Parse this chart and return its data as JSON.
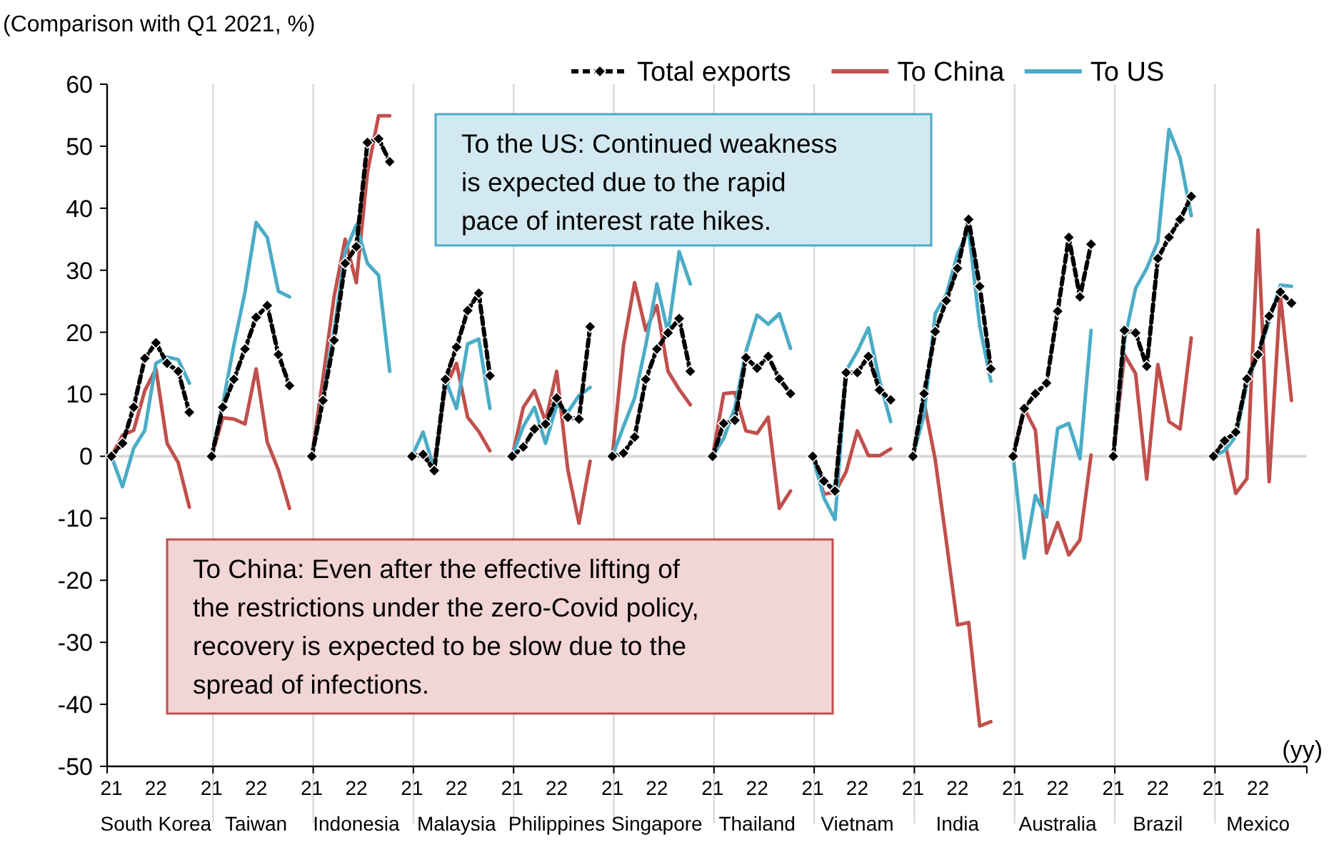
{
  "chart_data": {
    "type": "line",
    "ylabel": "(Comparison with Q1 2021, %)",
    "xlabel": "(yy)",
    "categories": [
      "21",
      null,
      null,
      null,
      "22",
      null,
      null,
      null,
      null,
      "21",
      null,
      null,
      null,
      "22",
      null,
      null,
      null,
      null,
      "21",
      null,
      null,
      null,
      "22",
      null,
      null,
      null,
      null,
      "21",
      null,
      null,
      null,
      "22",
      null,
      null,
      null,
      null,
      "21",
      null,
      null,
      null,
      "22",
      null,
      null,
      null,
      null,
      "21",
      null,
      null,
      null,
      "22",
      null,
      null,
      null,
      null,
      "21",
      null,
      null,
      null,
      "22",
      null,
      null,
      null,
      null,
      "21",
      null,
      null,
      null,
      "22",
      null,
      null,
      null,
      null,
      "21",
      null,
      null,
      null,
      "22",
      null,
      null,
      null,
      null,
      "21",
      null,
      null,
      null,
      "22",
      null,
      null,
      null,
      null,
      "21",
      null,
      null,
      null,
      "22",
      null,
      null,
      null,
      null,
      "21",
      null,
      null,
      null,
      "22",
      null,
      null,
      null,
      null
    ],
    "series": [
      {
        "name": "Total exports",
        "color": "#000000",
        "marker": "diamond",
        "line_style": "dashed",
        "values": [
          0,
          2.1,
          7.9,
          15.8,
          18.3,
          15.0,
          13.7,
          7.1,
          null,
          0,
          7.9,
          12.4,
          17.3,
          22.4,
          24.3,
          16.4,
          11.4,
          null,
          0,
          9.0,
          18.7,
          31.1,
          33.8,
          50.6,
          51.2,
          47.5,
          null,
          0,
          0.3,
          -2.3,
          12.4,
          17.6,
          23.5,
          26.3,
          13.0,
          null,
          0,
          1.5,
          4.4,
          5.2,
          9.4,
          6.3,
          6.0,
          20.9,
          null,
          0,
          0.5,
          3.1,
          12.4,
          17.3,
          19.9,
          22.2,
          13.7,
          null,
          0,
          5.3,
          5.8,
          15.9,
          14.2,
          16.1,
          12.5,
          10.1,
          null,
          0,
          -4.0,
          -5.6,
          13.5,
          13.5,
          16.1,
          10.7,
          9.1,
          null,
          0,
          10.1,
          20.1,
          25.1,
          30.3,
          38.2,
          27.4,
          14.1,
          null,
          0,
          7.7,
          10.1,
          11.8,
          23.4,
          35.3,
          25.7,
          34.2,
          null,
          0,
          20.3,
          19.9,
          14.5,
          31.9,
          35.3,
          38.2,
          41.9,
          null,
          0,
          2.5,
          3.9,
          12.5,
          16.4,
          22.6,
          26.5,
          24.7,
          null
        ]
      },
      {
        "name": "To China",
        "color": "#c0504d",
        "values": [
          0,
          3.4,
          4.2,
          10.6,
          14.1,
          2.1,
          -1.0,
          -8.2,
          null,
          0,
          6.2,
          6.0,
          5.2,
          14.1,
          2.3,
          -2.2,
          -8.4,
          null,
          0,
          12.5,
          25.7,
          35.0,
          28.0,
          45.8,
          54.9,
          54.9,
          null,
          0,
          0.5,
          -1.0,
          11.0,
          15.0,
          6.3,
          4.0,
          0.9,
          null,
          0,
          7.9,
          10.6,
          5.6,
          13.7,
          -2.2,
          -10.8,
          -0.8,
          null,
          0,
          17.9,
          28.0,
          20.3,
          24.3,
          13.7,
          10.8,
          8.3,
          null,
          0,
          10.1,
          10.3,
          4.1,
          3.7,
          6.3,
          -8.4,
          -5.6,
          null,
          0,
          -6.1,
          -5.8,
          -2.5,
          4.1,
          0.1,
          0.1,
          1.2,
          null,
          0,
          8.7,
          -0.5,
          -13.7,
          -27.2,
          -26.8,
          -43.5,
          -42.8,
          null,
          0,
          7.7,
          4.2,
          -15.6,
          -10.7,
          -15.9,
          -13.5,
          0.2,
          null,
          0,
          16.4,
          13.3,
          -3.7,
          14.8,
          5.6,
          4.4,
          19.1,
          null,
          0,
          2.5,
          -6.0,
          -3.6,
          36.5,
          -4.1,
          26.1,
          9.0,
          null
        ]
      },
      {
        "name": "To US",
        "color": "#4bacc6",
        "values": [
          0,
          -4.9,
          1.3,
          4.2,
          15.0,
          16.0,
          15.6,
          11.8,
          null,
          0,
          8.3,
          17.9,
          26.5,
          37.7,
          35.3,
          26.6,
          25.7,
          null,
          0,
          9.4,
          20.3,
          33.0,
          37.3,
          31.1,
          29.2,
          13.7,
          null,
          0,
          3.9,
          -2.2,
          12.4,
          7.7,
          18.1,
          18.9,
          7.7,
          null,
          0,
          4.8,
          7.9,
          2.1,
          8.3,
          7.1,
          9.8,
          11.1,
          null,
          0,
          4.8,
          9.4,
          17.9,
          27.8,
          19.9,
          33.0,
          27.8,
          null,
          0,
          2.9,
          7.8,
          16.9,
          22.8,
          21.3,
          23.0,
          17.4,
          null,
          0,
          -6.7,
          -10.2,
          13.8,
          16.9,
          20.7,
          12.2,
          5.6,
          null,
          0,
          6.7,
          23.0,
          26.1,
          32.6,
          36.5,
          21.0,
          12.1,
          null,
          0,
          -16.4,
          -6.3,
          -9.8,
          4.5,
          5.3,
          -0.4,
          20.3,
          null,
          0,
          18.7,
          27.1,
          30.3,
          34.6,
          52.7,
          48.1,
          38.8,
          null,
          0,
          0.9,
          3.2,
          11.8,
          16.4,
          21.8,
          27.6,
          27.4,
          null
        ]
      }
    ],
    "ylim": [
      -50,
      60
    ],
    "yticks": [
      -50,
      -40,
      -30,
      -20,
      -10,
      0,
      10,
      20,
      30,
      40,
      50,
      60
    ],
    "grid": "x",
    "legend": "top right",
    "ref_lines": [
      {
        "axis": "y",
        "value": 0,
        "color": "#d9d9d9"
      }
    ],
    "annotations": [
      "To the US: Continued weakness is expected due to the rapid pace of interest rate hikes.",
      "To China: Even after the effective lifting of the restrictions under the zero-Covid policy, recovery is expected to be slow due to the spread of infections.",
      "South Korea",
      "Taiwan",
      "Indonesia",
      "Malaysia",
      "Philippines",
      "Singapore",
      "Thailand",
      "Vietnam",
      "India",
      "Australia",
      "Brazil",
      "Mexico"
    ]
  }
}
